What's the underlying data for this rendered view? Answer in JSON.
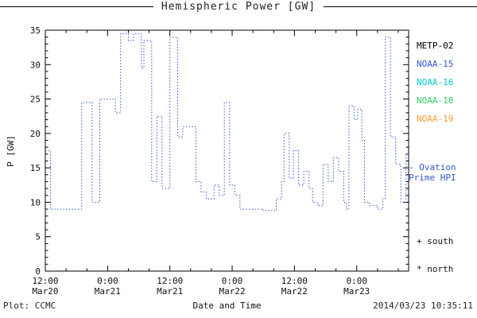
{
  "figure": {
    "title": "Hemispheric Power [GW]",
    "footer_left": "Plot: CCMC",
    "footer_right": "2014/03/23 10:35:11"
  },
  "chart_data": {
    "type": "line",
    "subtype": "step-dotted",
    "title": "Hemispheric Power [GW]",
    "xlabel": "Date and Time",
    "ylabel": "P [GW]",
    "ylim": [
      0,
      35
    ],
    "yticks": [
      0,
      5,
      10,
      15,
      20,
      25,
      30,
      35
    ],
    "y_minor_step": 1,
    "x_unit": "hours since 2014-03-20 12:00",
    "xlim": [
      0,
      70
    ],
    "x_major_step_hours": 12,
    "x_minor_step_hours": 4,
    "xticks": [
      {
        "t": 0,
        "time": "12:00",
        "date": "Mar20"
      },
      {
        "t": 12,
        "time": "0:00",
        "date": "Mar21"
      },
      {
        "t": 24,
        "time": "12:00",
        "date": "Mar21"
      },
      {
        "t": 36,
        "time": "0:00",
        "date": "Mar22"
      },
      {
        "t": 48,
        "time": "12:00",
        "date": "Mar22"
      },
      {
        "t": 60,
        "time": "0:00",
        "date": "Mar23"
      }
    ],
    "grid": false,
    "legend_position": "outside-right",
    "legend": [
      {
        "label": "METP-02",
        "color": "#000000"
      },
      {
        "label": "NOAA-15",
        "color": "#3355cc"
      },
      {
        "label": "NOAA-16",
        "color": "#00cccc"
      },
      {
        "label": "NOAA-18",
        "color": "#33cc66"
      },
      {
        "label": "NOAA-19",
        "color": "#ff9933"
      }
    ],
    "annotations": {
      "ovation": {
        "marker": "-",
        "label": "Ovation Prime HPI",
        "color": "#3355cc"
      },
      "south": "+ south",
      "north": "* north"
    },
    "line_color": "#3355cc",
    "series": [
      {
        "name": "Ovation Prime HPI",
        "points": [
          [
            0,
            17.5
          ],
          [
            1,
            9
          ],
          [
            7,
            24.5
          ],
          [
            9,
            10
          ],
          [
            10.5,
            25
          ],
          [
            13.5,
            23
          ],
          [
            14.5,
            34.5
          ],
          [
            16,
            33.5
          ],
          [
            17,
            34.5
          ],
          [
            18.5,
            29.5
          ],
          [
            19,
            33.5
          ],
          [
            20.5,
            13
          ],
          [
            21.5,
            22.5
          ],
          [
            22.5,
            12
          ],
          [
            24,
            34
          ],
          [
            25.5,
            19.5
          ],
          [
            26.5,
            21
          ],
          [
            29,
            13
          ],
          [
            30,
            11.5
          ],
          [
            31,
            10.5
          ],
          [
            32.5,
            12.5
          ],
          [
            33.5,
            11
          ],
          [
            34.5,
            24.5
          ],
          [
            35.5,
            12.5
          ],
          [
            36.5,
            11
          ],
          [
            37.5,
            9
          ],
          [
            42,
            8.8
          ],
          [
            44.5,
            10.5
          ],
          [
            45.5,
            13
          ],
          [
            46,
            20
          ],
          [
            47,
            13.5
          ],
          [
            47.8,
            17.5
          ],
          [
            48.8,
            12.5
          ],
          [
            49.8,
            14.5
          ],
          [
            50.8,
            12
          ],
          [
            51.5,
            10
          ],
          [
            52.5,
            9.5
          ],
          [
            53.5,
            15.5
          ],
          [
            54.5,
            13
          ],
          [
            55.5,
            16.5
          ],
          [
            56.5,
            14.5
          ],
          [
            57.5,
            10
          ],
          [
            58,
            9
          ],
          [
            58.5,
            24
          ],
          [
            59.5,
            22
          ],
          [
            60.2,
            23.5
          ],
          [
            61,
            19
          ],
          [
            61.5,
            10
          ],
          [
            62.5,
            9.5
          ],
          [
            64,
            9
          ],
          [
            65,
            10.5
          ],
          [
            65.5,
            34
          ],
          [
            66.5,
            19.5
          ],
          [
            67.5,
            15.5
          ],
          [
            68.5,
            10
          ],
          [
            69.5,
            17
          ]
        ]
      }
    ]
  }
}
